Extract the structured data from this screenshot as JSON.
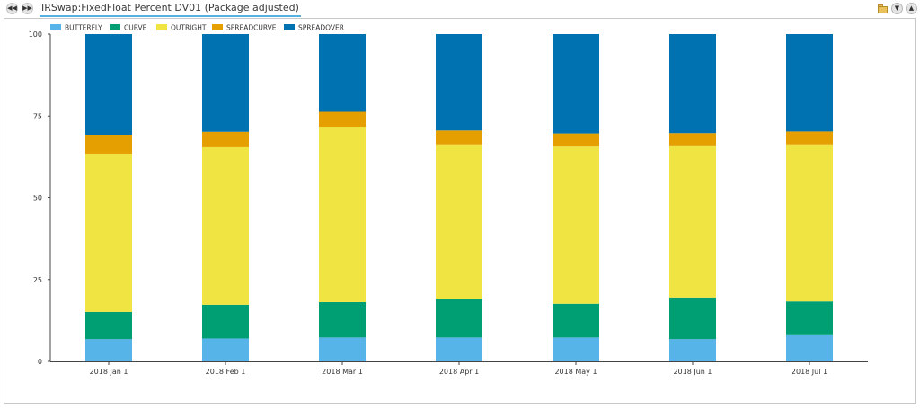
{
  "header": {
    "title": "IRSwap:FixedFloat Percent DV01 (Package adjusted)",
    "nav_back_icon": "rewind-icon",
    "nav_forward_icon": "fast-forward-icon",
    "right_icons": [
      "folder-icon",
      "collapse-icon",
      "expand-icon"
    ]
  },
  "chart_data": {
    "type": "bar",
    "stacked": true,
    "categories": [
      "2018 Jan 1",
      "2018 Feb 1",
      "2018 Mar 1",
      "2018 Apr 1",
      "2018 May 1",
      "2018 Jun 1",
      "2018 Jul 1"
    ],
    "series": [
      {
        "name": "BUTTERFLY",
        "color": "#56b4e9",
        "values": [
          6.8,
          7.0,
          7.3,
          7.3,
          7.3,
          6.8,
          8.0
        ]
      },
      {
        "name": "CURVE",
        "color": "#009e73",
        "values": [
          8.3,
          10.3,
          10.8,
          11.8,
          10.3,
          12.7,
          10.3
        ]
      },
      {
        "name": "OUTRIGHT",
        "color": "#f0e442",
        "values": [
          48.2,
          48.2,
          53.4,
          47.0,
          48.1,
          46.3,
          47.8
        ]
      },
      {
        "name": "SPREADCURVE",
        "color": "#e69f00",
        "values": [
          5.9,
          4.7,
          4.8,
          4.5,
          4.0,
          4.0,
          4.2
        ]
      },
      {
        "name": "SPREADOVER",
        "color": "#0072b2",
        "values": [
          30.8,
          29.8,
          23.7,
          29.4,
          30.3,
          30.2,
          29.7
        ]
      }
    ],
    "yticks": [
      0,
      25,
      50,
      75,
      100
    ],
    "ylim": [
      0,
      100
    ],
    "legend_position": "top-left",
    "grid": false
  }
}
